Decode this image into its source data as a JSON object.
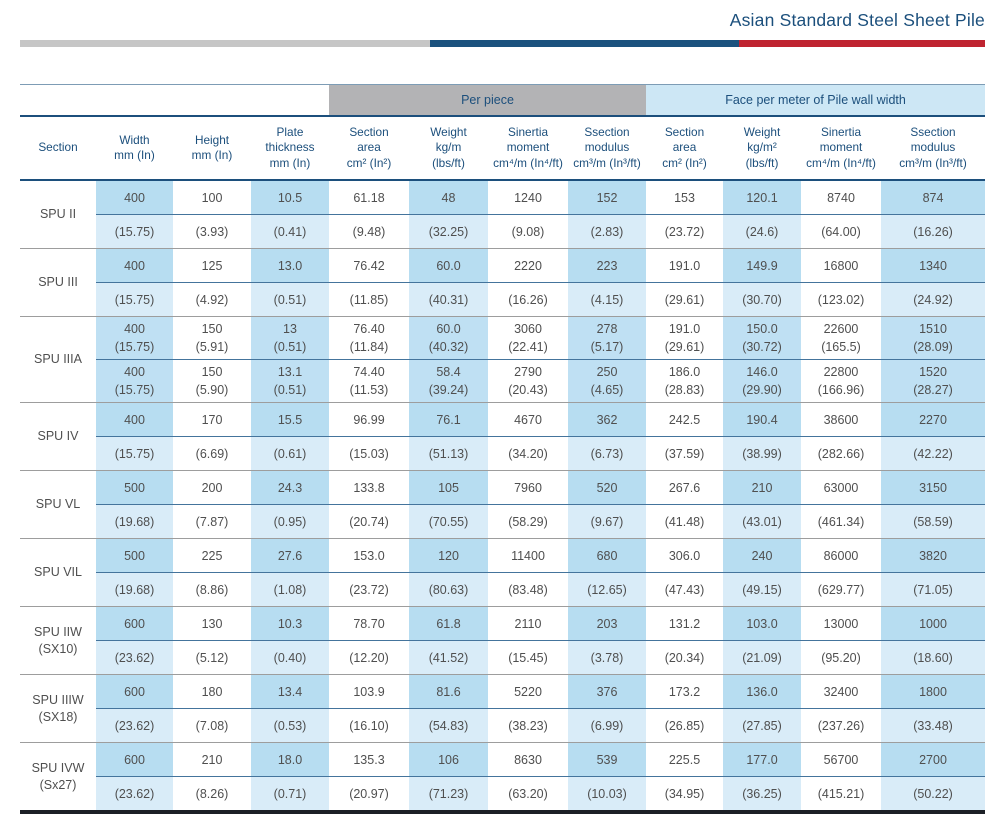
{
  "page": {
    "title": "Asian Standard Steel Sheet Pile"
  },
  "colors": {
    "accent_navy": "#1b527e",
    "accent_red": "#bf2430",
    "accent_gray": "#c6c6c6",
    "band_gray_bg": "#b3b3b5",
    "band_blue_bg": "#cde7f5",
    "column_blue_metric": "#b7ddf1",
    "column_blue_imperial": "#d9ecf8",
    "header_text": "#1c4f7c",
    "data_text": "#4f4f4f"
  },
  "table": {
    "band": {
      "per_piece": "Per piece",
      "face": "Face per meter of Pile wall width"
    },
    "headers": [
      {
        "id": "section",
        "lines": [
          "Section"
        ]
      },
      {
        "id": "width",
        "lines": [
          "Width",
          "mm (In)"
        ]
      },
      {
        "id": "height",
        "lines": [
          "Height",
          "mm (In)"
        ]
      },
      {
        "id": "plate-thickness",
        "lines": [
          "Plate",
          "thickness",
          "mm (In)"
        ]
      },
      {
        "id": "section-area",
        "lines": [
          "Section",
          "area",
          "cm² (In²)"
        ]
      },
      {
        "id": "weight",
        "lines": [
          "Weight",
          "kg/m",
          "(lbs/ft)"
        ]
      },
      {
        "id": "sinertia-moment",
        "lines": [
          "Sinertia",
          "moment",
          "cm⁴/m (In⁴/ft)"
        ]
      },
      {
        "id": "ssection-modulus",
        "lines": [
          "Ssection",
          "modulus",
          "cm³/m (In³/ft)"
        ]
      },
      {
        "id": "section-area-wall",
        "lines": [
          "Section",
          "area",
          "cm² (In²)"
        ]
      },
      {
        "id": "weight-wall",
        "lines": [
          "Weight",
          "kg/m²",
          "(lbs/ft)"
        ]
      },
      {
        "id": "sinertia-moment-wall",
        "lines": [
          "Sinertia",
          "moment",
          "cm⁴/m (In⁴/ft)"
        ]
      },
      {
        "id": "ssection-modulus-wall",
        "lines": [
          "Ssection",
          "modulus",
          "cm³/m (In³/ft)"
        ]
      }
    ],
    "groups": [
      {
        "section": [
          "SPU II"
        ],
        "subrows": [
          {
            "metric": [
              "400",
              "100",
              "10.5",
              "61.18",
              "48",
              "1240",
              "152",
              "153",
              "120.1",
              "8740",
              "874"
            ],
            "imperial": [
              "(15.75)",
              "(3.93)",
              "(0.41)",
              "(9.48)",
              "(32.25)",
              "(9.08)",
              "(2.83)",
              "(23.72)",
              "(24.6)",
              "(64.00)",
              "(16.26)"
            ]
          }
        ]
      },
      {
        "section": [
          "SPU III"
        ],
        "subrows": [
          {
            "metric": [
              "400",
              "125",
              "13.0",
              "76.42",
              "60.0",
              "2220",
              "223",
              "191.0",
              "149.9",
              "16800",
              "1340"
            ],
            "imperial": [
              "(15.75)",
              "(4.92)",
              "(0.51)",
              "(11.85)",
              "(40.31)",
              "(16.26)",
              "(4.15)",
              "(29.61)",
              "(30.70)",
              "(123.02)",
              "(24.92)"
            ]
          }
        ]
      },
      {
        "section": [
          "SPU IIIA"
        ],
        "subrows": [
          {
            "metric": [
              "400",
              "150",
              "13",
              "76.40",
              "60.0",
              "3060",
              "278",
              "191.0",
              "150.0",
              "22600",
              "1510"
            ],
            "imperial": [
              "(15.75)",
              "(5.91)",
              "(0.51)",
              "(11.84)",
              "(40.32)",
              "(22.41)",
              "(5.17)",
              "(29.61)",
              "(30.72)",
              "(165.5)",
              "(28.09)"
            ]
          },
          {
            "metric": [
              "400",
              "150",
              "13.1",
              "74.40",
              "58.4",
              "2790",
              "250",
              "186.0",
              "146.0",
              "22800",
              "1520"
            ],
            "imperial": [
              "(15.75)",
              "(5.90)",
              "(0.51)",
              "(11.53)",
              "(39.24)",
              "(20.43)",
              "(4.65)",
              "(28.83)",
              "(29.90)",
              "(166.96)",
              "(28.27)"
            ]
          }
        ]
      },
      {
        "section": [
          "SPU IV"
        ],
        "subrows": [
          {
            "metric": [
              "400",
              "170",
              "15.5",
              "96.99",
              "76.1",
              "4670",
              "362",
              "242.5",
              "190.4",
              "38600",
              "2270"
            ],
            "imperial": [
              "(15.75)",
              "(6.69)",
              "(0.61)",
              "(15.03)",
              "(51.13)",
              "(34.20)",
              "(6.73)",
              "(37.59)",
              "(38.99)",
              "(282.66)",
              "(42.22)"
            ]
          }
        ]
      },
      {
        "section": [
          "SPU VL"
        ],
        "subrows": [
          {
            "metric": [
              "500",
              "200",
              "24.3",
              "133.8",
              "105",
              "7960",
              "520",
              "267.6",
              "210",
              "63000",
              "3150"
            ],
            "imperial": [
              "(19.68)",
              "(7.87)",
              "(0.95)",
              "(20.74)",
              "(70.55)",
              "(58.29)",
              "(9.67)",
              "(41.48)",
              "(43.01)",
              "(461.34)",
              "(58.59)"
            ]
          }
        ]
      },
      {
        "section": [
          "SPU VIL"
        ],
        "subrows": [
          {
            "metric": [
              "500",
              "225",
              "27.6",
              "153.0",
              "120",
              "11400",
              "680",
              "306.0",
              "240",
              "86000",
              "3820"
            ],
            "imperial": [
              "(19.68)",
              "(8.86)",
              "(1.08)",
              "(23.72)",
              "(80.63)",
              "(83.48)",
              "(12.65)",
              "(47.43)",
              "(49.15)",
              "(629.77)",
              "(71.05)"
            ]
          }
        ]
      },
      {
        "section": [
          "SPU IIW",
          "(SX10)"
        ],
        "subrows": [
          {
            "metric": [
              "600",
              "130",
              "10.3",
              "78.70",
              "61.8",
              "2110",
              "203",
              "131.2",
              "103.0",
              "13000",
              "1000"
            ],
            "imperial": [
              "(23.62)",
              "(5.12)",
              "(0.40)",
              "(12.20)",
              "(41.52)",
              "(15.45)",
              "(3.78)",
              "(20.34)",
              "(21.09)",
              "(95.20)",
              "(18.60)"
            ]
          }
        ]
      },
      {
        "section": [
          "SPU IIIW",
          "(SX18)"
        ],
        "subrows": [
          {
            "metric": [
              "600",
              "180",
              "13.4",
              "103.9",
              "81.6",
              "5220",
              "376",
              "173.2",
              "136.0",
              "32400",
              "1800"
            ],
            "imperial": [
              "(23.62)",
              "(7.08)",
              "(0.53)",
              "(16.10)",
              "(54.83)",
              "(38.23)",
              "(6.99)",
              "(26.85)",
              "(27.85)",
              "(237.26)",
              "(33.48)"
            ]
          }
        ]
      },
      {
        "section": [
          "SPU IVW",
          "(Sx27)"
        ],
        "subrows": [
          {
            "metric": [
              "600",
              "210",
              "18.0",
              "135.3",
              "106",
              "8630",
              "539",
              "225.5",
              "177.0",
              "56700",
              "2700"
            ],
            "imperial": [
              "(23.62)",
              "(8.26)",
              "(0.71)",
              "(20.97)",
              "(71.23)",
              "(63.20)",
              "(10.03)",
              "(34.95)",
              "(36.25)",
              "(415.21)",
              "(50.22)"
            ]
          }
        ]
      }
    ]
  }
}
